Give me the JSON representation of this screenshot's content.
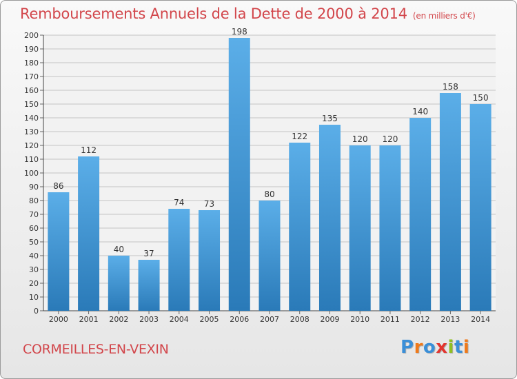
{
  "title": "Remboursements Annuels de la Dette de 2000 à 2014",
  "unit_note": "(en milliers d'€)",
  "town": "CORMEILLES-EN-VEXIN",
  "logo": {
    "text": "Proxiti",
    "letter_colors": [
      "#3a8fd8",
      "#f07a1a",
      "#3a8fd8",
      "#e2352f",
      "#8fbf22",
      "#3a8fd8",
      "#f07a1a"
    ]
  },
  "colors": {
    "bar_light": "#5baee8",
    "bar_dark": "#2a7ab8",
    "grid": "#c4c4c4",
    "title": "#d2464b"
  },
  "chart_data": {
    "type": "bar",
    "title": "Remboursements Annuels de la Dette de 2000 à 2014",
    "ylabel": "en milliers d'€",
    "xlabel": "",
    "categories": [
      "2000",
      "2001",
      "2002",
      "2003",
      "2004",
      "2005",
      "2006",
      "2007",
      "2008",
      "2009",
      "2010",
      "2011",
      "2012",
      "2013",
      "2014"
    ],
    "values": [
      86,
      112,
      40,
      37,
      74,
      73,
      198,
      80,
      122,
      135,
      120,
      120,
      140,
      158,
      150
    ],
    "ylim": [
      0,
      200
    ],
    "ytick_step": 10,
    "grid": true
  }
}
